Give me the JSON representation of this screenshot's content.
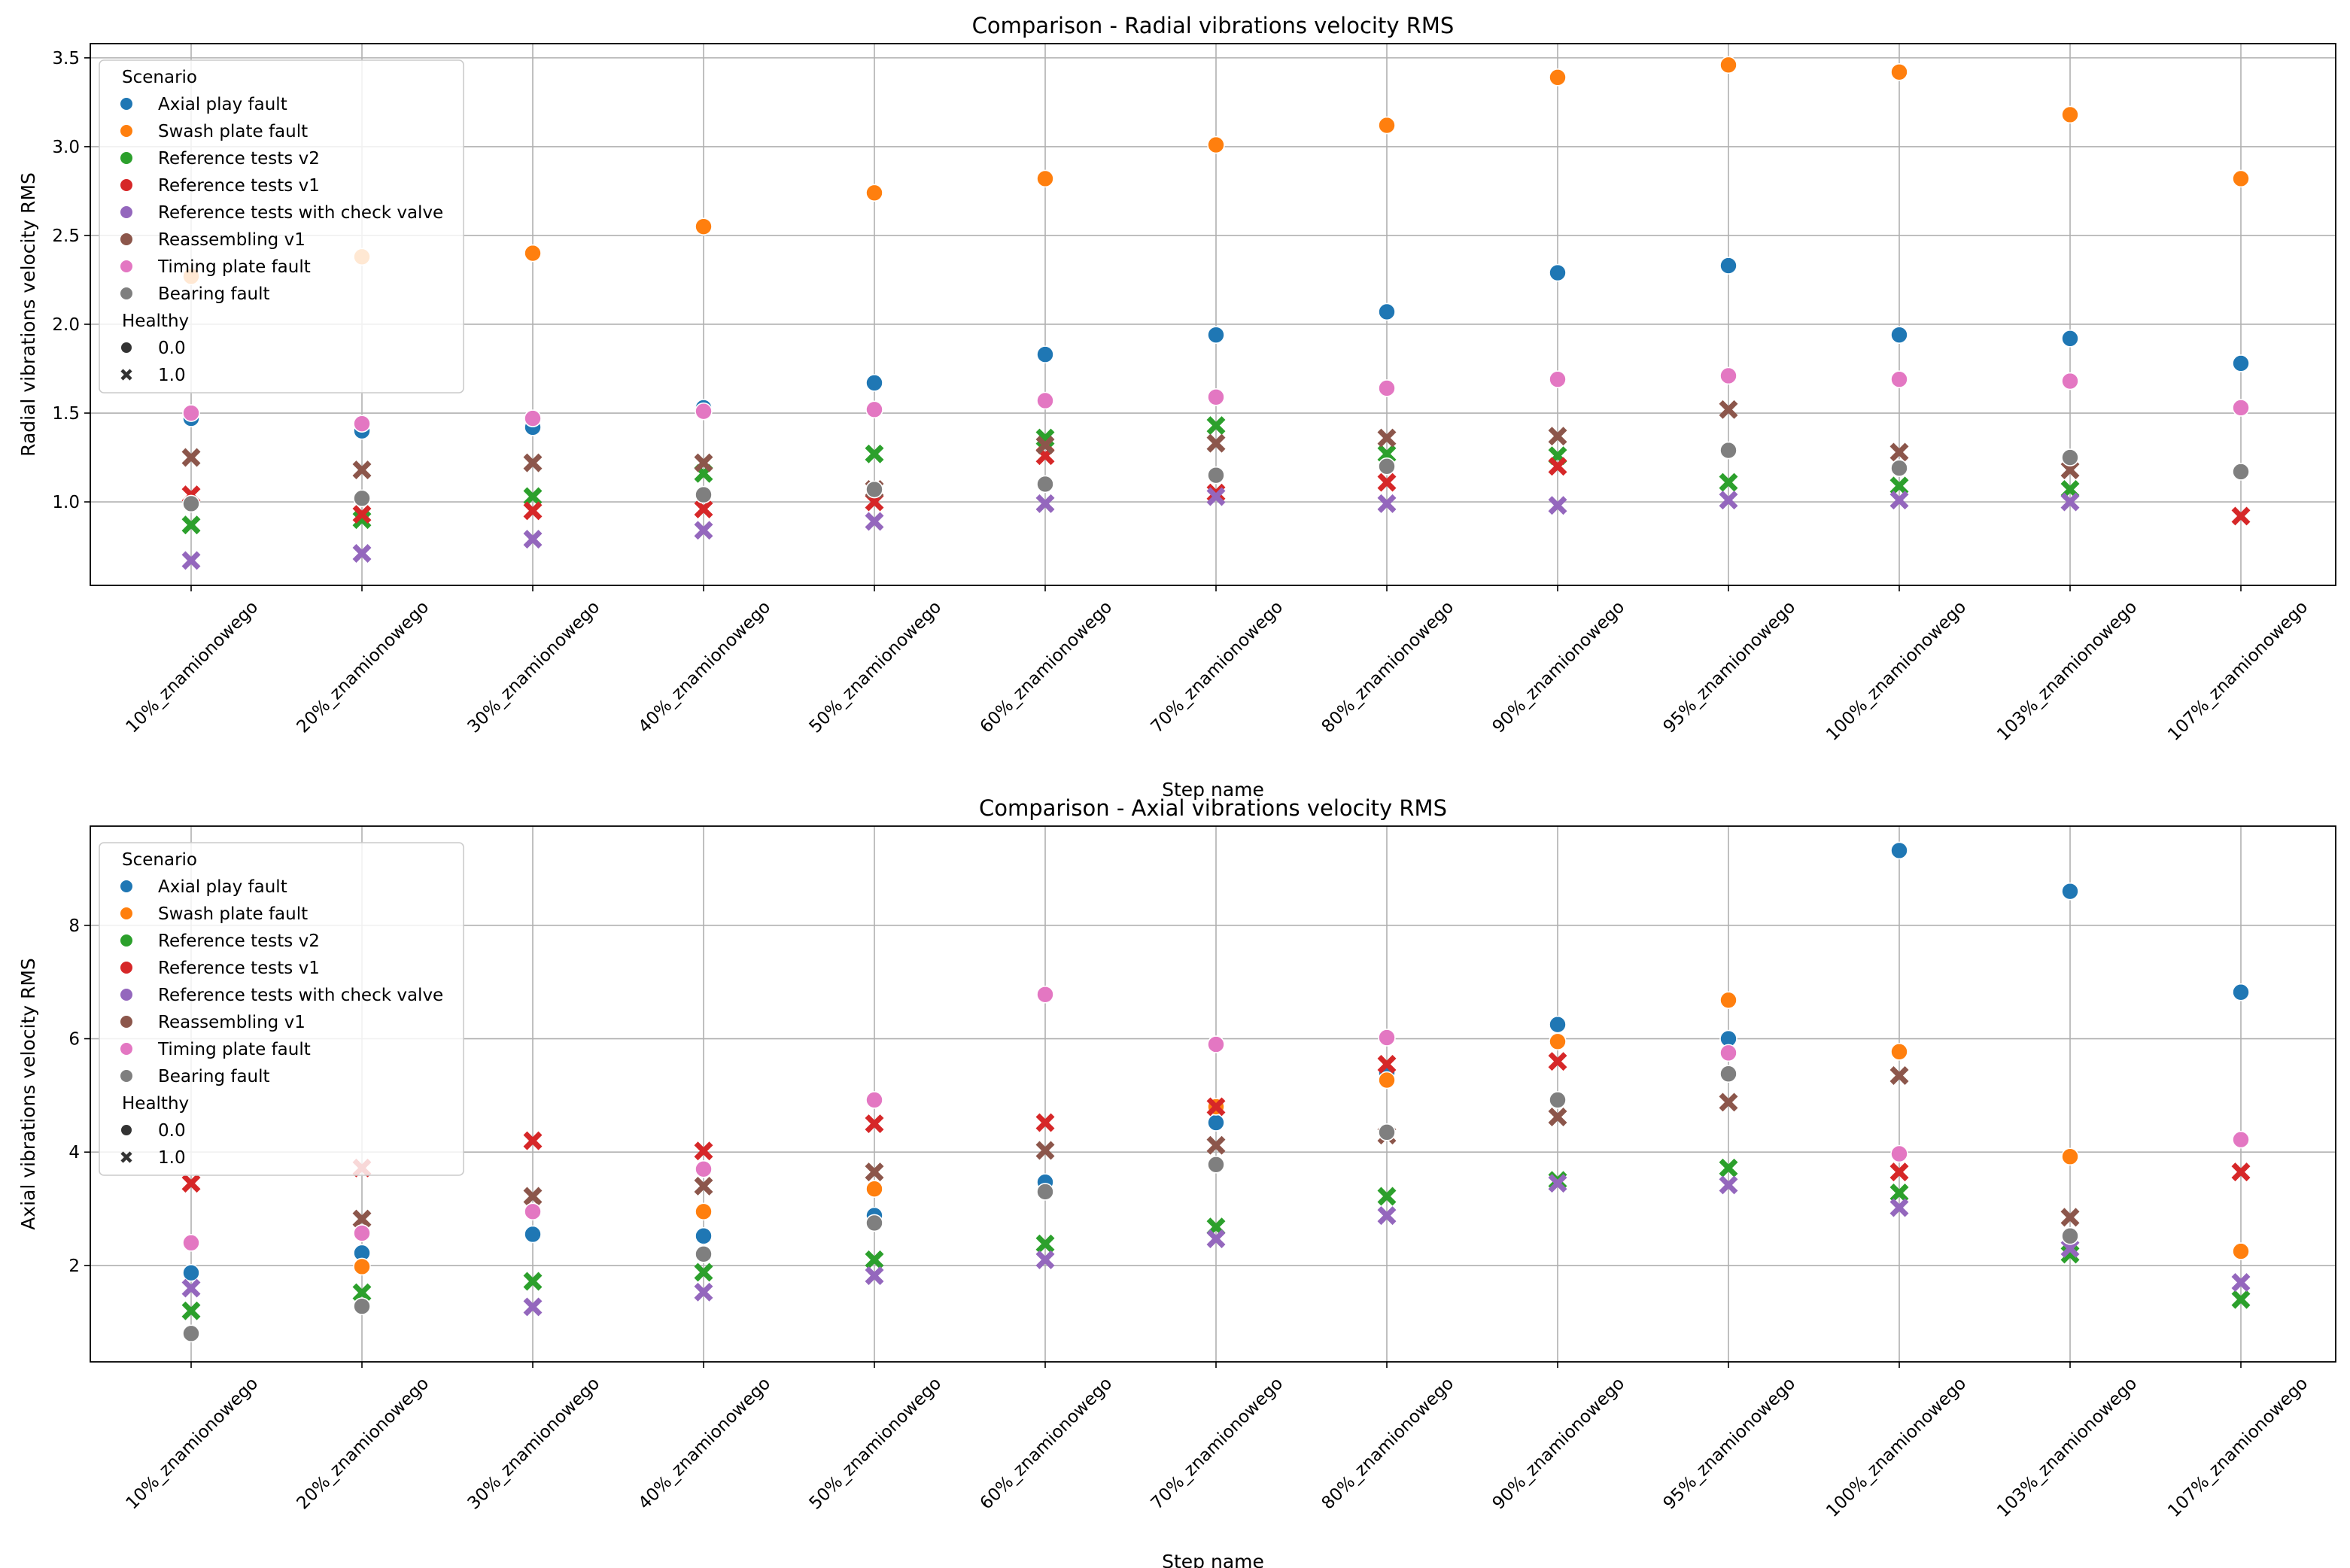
{
  "chart_data": [
    {
      "type": "scatter",
      "title": "Comparison - Radial vibrations velocity RMS",
      "xlabel": "Step name",
      "ylabel": "Radial vibrations velocity RMS",
      "categories": [
        "10%_znamionowego",
        "20%_znamionowego",
        "30%_znamionowego",
        "40%_znamionowego",
        "50%_znamionowego",
        "60%_znamionowego",
        "70%_znamionowego",
        "80%_znamionowego",
        "90%_znamionowego",
        "95%_znamionowego",
        "100%_znamionowego",
        "103%_znamionowego",
        "107%_znamionowego"
      ],
      "ylim": [
        0.53,
        3.58
      ],
      "yticks": [
        1.0,
        1.5,
        2.0,
        2.5,
        3.0,
        3.5
      ],
      "ytick_labels": [
        "1.0",
        "1.5",
        "2.0",
        "2.5",
        "3.0",
        "3.5"
      ],
      "grid": true,
      "legend_position": "top-left",
      "series": [
        {
          "name": "Axial play fault",
          "healthy": "0.0",
          "values": [
            1.47,
            1.4,
            1.42,
            1.53,
            1.67,
            1.83,
            1.94,
            2.07,
            2.29,
            2.33,
            1.94,
            1.92,
            1.78
          ]
        },
        {
          "name": "Swash plate fault",
          "healthy": "0.0",
          "values": [
            2.27,
            2.38,
            2.4,
            2.55,
            2.74,
            2.82,
            3.01,
            3.12,
            3.39,
            3.46,
            3.42,
            3.18,
            2.82
          ]
        },
        {
          "name": "Reference tests v2",
          "healthy": "1.0",
          "values": [
            0.87,
            0.9,
            1.03,
            1.16,
            1.27,
            1.36,
            1.43,
            1.27,
            1.26,
            1.11,
            1.09,
            1.07,
            null
          ]
        },
        {
          "name": "Reference tests v1",
          "healthy": "1.0",
          "values": [
            1.04,
            0.93,
            0.95,
            0.96,
            1.0,
            1.26,
            1.05,
            1.11,
            1.2,
            null,
            null,
            null,
            0.92
          ]
        },
        {
          "name": "Reference tests with check valve",
          "healthy": "1.0",
          "values": [
            0.67,
            0.71,
            0.79,
            0.84,
            0.89,
            0.99,
            1.03,
            0.99,
            0.98,
            1.01,
            1.01,
            1.0,
            null
          ]
        },
        {
          "name": "Reassembling v1",
          "healthy": "1.0",
          "values": [
            1.25,
            1.18,
            1.22,
            1.22,
            1.07,
            1.32,
            1.33,
            1.36,
            1.37,
            1.52,
            1.28,
            1.18,
            null
          ]
        },
        {
          "name": "Timing plate fault",
          "healthy": "0.0",
          "values": [
            1.5,
            1.44,
            1.47,
            1.51,
            1.52,
            1.57,
            1.59,
            1.64,
            1.69,
            1.71,
            1.69,
            1.68,
            1.53
          ]
        },
        {
          "name": "Bearing fault",
          "healthy": "0.0",
          "values": [
            0.99,
            1.02,
            null,
            1.04,
            1.07,
            1.1,
            1.15,
            1.2,
            null,
            1.29,
            1.19,
            1.25,
            1.17
          ]
        }
      ]
    },
    {
      "type": "scatter",
      "title": "Comparison - Axial vibrations velocity RMS",
      "xlabel": "Step name",
      "ylabel": "Axial vibrations velocity RMS",
      "categories": [
        "10%_znamionowego",
        "20%_znamionowego",
        "30%_znamionowego",
        "40%_znamionowego",
        "50%_znamionowego",
        "60%_znamionowego",
        "70%_znamionowego",
        "80%_znamionowego",
        "90%_znamionowego",
        "95%_znamionowego",
        "100%_znamionowego",
        "103%_znamionowego",
        "107%_znamionowego"
      ],
      "ylim": [
        0.3,
        9.75
      ],
      "yticks": [
        2,
        4,
        6,
        8
      ],
      "ytick_labels": [
        "2",
        "4",
        "6",
        "8"
      ],
      "grid": true,
      "legend_position": "top-left",
      "series": [
        {
          "name": "Axial play fault",
          "healthy": "0.0",
          "values": [
            1.87,
            2.22,
            2.55,
            2.52,
            2.88,
            3.47,
            4.52,
            5.4,
            6.25,
            6.0,
            9.32,
            8.6,
            6.82
          ]
        },
        {
          "name": "Swash plate fault",
          "healthy": "0.0",
          "values": [
            null,
            1.98,
            null,
            2.95,
            3.35,
            null,
            4.8,
            5.27,
            5.95,
            6.68,
            5.77,
            3.92,
            2.25
          ]
        },
        {
          "name": "Reference tests v2",
          "healthy": "1.0",
          "values": [
            1.2,
            1.52,
            1.72,
            1.88,
            2.1,
            2.38,
            2.68,
            3.22,
            3.5,
            3.72,
            3.28,
            2.2,
            1.4
          ]
        },
        {
          "name": "Reference tests v1",
          "healthy": "1.0",
          "values": [
            3.45,
            3.72,
            4.2,
            4.02,
            4.5,
            4.52,
            4.8,
            5.55,
            5.6,
            null,
            3.65,
            null,
            3.65
          ]
        },
        {
          "name": "Reference tests with check valve",
          "healthy": "1.0",
          "values": [
            1.6,
            null,
            1.27,
            1.53,
            1.82,
            2.1,
            2.47,
            2.88,
            3.45,
            3.42,
            3.02,
            2.3,
            1.7
          ]
        },
        {
          "name": "Reassembling v1",
          "healthy": "1.0",
          "values": [
            null,
            2.82,
            3.22,
            3.4,
            3.65,
            4.03,
            4.12,
            4.3,
            4.62,
            4.88,
            5.35,
            2.85,
            null
          ]
        },
        {
          "name": "Timing plate fault",
          "healthy": "0.0",
          "values": [
            2.4,
            2.57,
            2.95,
            3.7,
            4.92,
            6.78,
            5.9,
            6.02,
            null,
            5.75,
            3.97,
            null,
            4.22
          ]
        },
        {
          "name": "Bearing fault",
          "healthy": "0.0",
          "values": [
            0.8,
            1.28,
            null,
            2.2,
            2.75,
            3.3,
            3.78,
            4.35,
            4.92,
            5.38,
            null,
            2.52,
            null
          ]
        }
      ]
    }
  ],
  "legend": {
    "scenario_title": "Scenario",
    "healthy_title": "Healthy",
    "healthy_values": [
      "0.0",
      "1.0"
    ]
  },
  "colors": {
    "Axial play fault": "#1f77b4",
    "Swash plate fault": "#ff7f0e",
    "Reference tests v2": "#2ca02c",
    "Reference tests v1": "#d62728",
    "Reference tests with check valve": "#9467bd",
    "Reassembling v1": "#8c564b",
    "Timing plate fault": "#e377c2",
    "Bearing fault": "#7f7f7f"
  }
}
